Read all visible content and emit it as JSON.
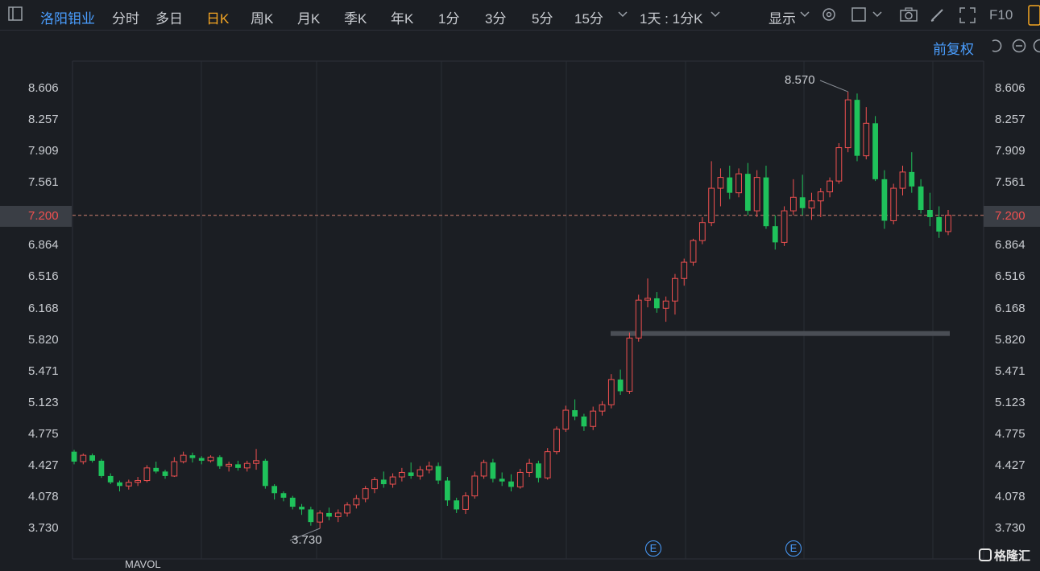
{
  "toolbar": {
    "stock_name": "洛阳钼业",
    "periods": [
      "分时",
      "多日",
      "日K",
      "周K",
      "月K",
      "季K",
      "年K",
      "1分",
      "3分",
      "5分",
      "15分"
    ],
    "active_period": "日K",
    "interval_select": "1天 : 1分K",
    "display_label": "显示",
    "f10_label": "F10"
  },
  "subbar": {
    "adjust_label": "前复权"
  },
  "axis": {
    "left_ticks": [
      "8.606",
      "8.257",
      "7.909",
      "7.561",
      "7.200",
      "6.864",
      "6.516",
      "6.168",
      "5.820",
      "5.471",
      "5.123",
      "4.775",
      "4.427",
      "4.078",
      "3.730"
    ],
    "current_price": "7.200"
  },
  "annotations": {
    "high": "8.570",
    "low": "3.730",
    "event_markers": [
      "E",
      "E"
    ]
  },
  "colors": {
    "up": "#f05050",
    "down": "#1fc25b",
    "accent": "#4a9eff",
    "active": "#f5a623"
  },
  "bottom": {
    "indicator_name": "MAVOL"
  },
  "watermark": "格隆汇",
  "chart_data": {
    "type": "candlestick",
    "ylim": [
      3.73,
      8.606
    ],
    "ohlc": [
      [
        4.58,
        4.6,
        4.44,
        4.47
      ],
      [
        4.47,
        4.56,
        4.44,
        4.54
      ],
      [
        4.54,
        4.56,
        4.46,
        4.48
      ],
      [
        4.48,
        4.5,
        4.29,
        4.31
      ],
      [
        4.31,
        4.34,
        4.22,
        4.24
      ],
      [
        4.24,
        4.26,
        4.14,
        4.2
      ],
      [
        4.2,
        4.27,
        4.16,
        4.24
      ],
      [
        4.24,
        4.3,
        4.2,
        4.26
      ],
      [
        4.26,
        4.43,
        4.24,
        4.4
      ],
      [
        4.4,
        4.47,
        4.34,
        4.36
      ],
      [
        4.36,
        4.38,
        4.28,
        4.31
      ],
      [
        4.31,
        4.52,
        4.3,
        4.47
      ],
      [
        4.47,
        4.58,
        4.45,
        4.54
      ],
      [
        4.54,
        4.57,
        4.46,
        4.51
      ],
      [
        4.51,
        4.53,
        4.44,
        4.48
      ],
      [
        4.48,
        4.54,
        4.46,
        4.52
      ],
      [
        4.52,
        4.54,
        4.39,
        4.42
      ],
      [
        4.42,
        4.47,
        4.36,
        4.44
      ],
      [
        4.44,
        4.48,
        4.37,
        4.4
      ],
      [
        4.4,
        4.48,
        4.36,
        4.45
      ],
      [
        4.45,
        4.61,
        4.38,
        4.48
      ],
      [
        4.48,
        4.5,
        4.17,
        4.2
      ],
      [
        4.2,
        4.22,
        4.05,
        4.12
      ],
      [
        4.12,
        4.14,
        4.03,
        4.07
      ],
      [
        4.07,
        4.09,
        3.94,
        3.97
      ],
      [
        3.97,
        4.0,
        3.88,
        3.94
      ],
      [
        3.94,
        3.97,
        3.76,
        3.8
      ],
      [
        3.8,
        3.93,
        3.73,
        3.9
      ],
      [
        3.9,
        3.96,
        3.82,
        3.86
      ],
      [
        3.86,
        3.94,
        3.8,
        3.9
      ],
      [
        3.9,
        4.02,
        3.86,
        3.99
      ],
      [
        3.99,
        4.1,
        3.95,
        4.06
      ],
      [
        4.06,
        4.2,
        4.02,
        4.17
      ],
      [
        4.17,
        4.3,
        4.12,
        4.27
      ],
      [
        4.27,
        4.36,
        4.18,
        4.22
      ],
      [
        4.22,
        4.34,
        4.18,
        4.3
      ],
      [
        4.3,
        4.4,
        4.25,
        4.35
      ],
      [
        4.35,
        4.46,
        4.28,
        4.31
      ],
      [
        4.31,
        4.42,
        4.27,
        4.38
      ],
      [
        4.38,
        4.47,
        4.34,
        4.42
      ],
      [
        4.42,
        4.46,
        4.22,
        4.26
      ],
      [
        4.26,
        4.3,
        3.98,
        4.04
      ],
      [
        4.04,
        4.07,
        3.9,
        3.94
      ],
      [
        3.94,
        4.13,
        3.89,
        4.09
      ],
      [
        4.09,
        4.36,
        4.06,
        4.31
      ],
      [
        4.31,
        4.49,
        4.28,
        4.46
      ],
      [
        4.46,
        4.5,
        4.24,
        4.28
      ],
      [
        4.28,
        4.35,
        4.2,
        4.25
      ],
      [
        4.25,
        4.33,
        4.14,
        4.19
      ],
      [
        4.19,
        4.39,
        4.17,
        4.35
      ],
      [
        4.35,
        4.5,
        4.3,
        4.45
      ],
      [
        4.45,
        4.48,
        4.24,
        4.29
      ],
      [
        4.29,
        4.62,
        4.27,
        4.58
      ],
      [
        4.58,
        4.86,
        4.55,
        4.83
      ],
      [
        4.83,
        5.09,
        4.8,
        5.04
      ],
      [
        5.04,
        5.16,
        4.93,
        4.97
      ],
      [
        4.97,
        5.0,
        4.81,
        4.86
      ],
      [
        4.86,
        5.08,
        4.82,
        5.03
      ],
      [
        5.03,
        5.14,
        4.98,
        5.1
      ],
      [
        5.1,
        5.44,
        5.06,
        5.38
      ],
      [
        5.38,
        5.49,
        5.21,
        5.25
      ],
      [
        5.25,
        5.9,
        5.22,
        5.84
      ],
      [
        5.84,
        6.32,
        5.8,
        6.26
      ],
      [
        6.26,
        6.5,
        6.18,
        6.28
      ],
      [
        6.28,
        6.35,
        6.12,
        6.17
      ],
      [
        6.17,
        6.3,
        6.02,
        6.25
      ],
      [
        6.25,
        6.55,
        6.1,
        6.5
      ],
      [
        6.5,
        6.72,
        6.42,
        6.68
      ],
      [
        6.68,
        6.94,
        6.64,
        6.92
      ],
      [
        6.92,
        7.18,
        6.88,
        7.12
      ],
      [
        7.12,
        7.8,
        7.08,
        7.5
      ],
      [
        7.5,
        7.72,
        7.3,
        7.62
      ],
      [
        7.62,
        7.75,
        7.38,
        7.45
      ],
      [
        7.45,
        7.72,
        7.4,
        7.66
      ],
      [
        7.66,
        7.78,
        7.2,
        7.25
      ],
      [
        7.25,
        7.7,
        7.18,
        7.62
      ],
      [
        7.62,
        7.75,
        7.05,
        7.08
      ],
      [
        7.08,
        7.2,
        6.82,
        6.9
      ],
      [
        6.9,
        7.3,
        6.86,
        7.25
      ],
      [
        7.25,
        7.6,
        7.2,
        7.4
      ],
      [
        7.4,
        7.65,
        7.2,
        7.28
      ],
      [
        7.28,
        7.45,
        7.15,
        7.36
      ],
      [
        7.36,
        7.5,
        7.18,
        7.46
      ],
      [
        7.46,
        7.62,
        7.4,
        7.58
      ],
      [
        7.58,
        8.0,
        7.55,
        7.95
      ],
      [
        7.95,
        8.57,
        7.9,
        8.48
      ],
      [
        8.48,
        8.55,
        7.8,
        7.86
      ],
      [
        7.86,
        8.4,
        7.82,
        8.22
      ],
      [
        8.22,
        8.3,
        7.58,
        7.6
      ],
      [
        7.6,
        7.7,
        7.05,
        7.14
      ],
      [
        7.14,
        7.55,
        7.1,
        7.5
      ],
      [
        7.5,
        7.75,
        7.42,
        7.68
      ],
      [
        7.68,
        7.9,
        7.45,
        7.52
      ],
      [
        7.52,
        7.6,
        7.22,
        7.26
      ],
      [
        7.26,
        7.45,
        7.08,
        7.18
      ],
      [
        7.18,
        7.3,
        6.95,
        7.02
      ],
      [
        7.02,
        7.26,
        6.98,
        7.2
      ]
    ]
  }
}
